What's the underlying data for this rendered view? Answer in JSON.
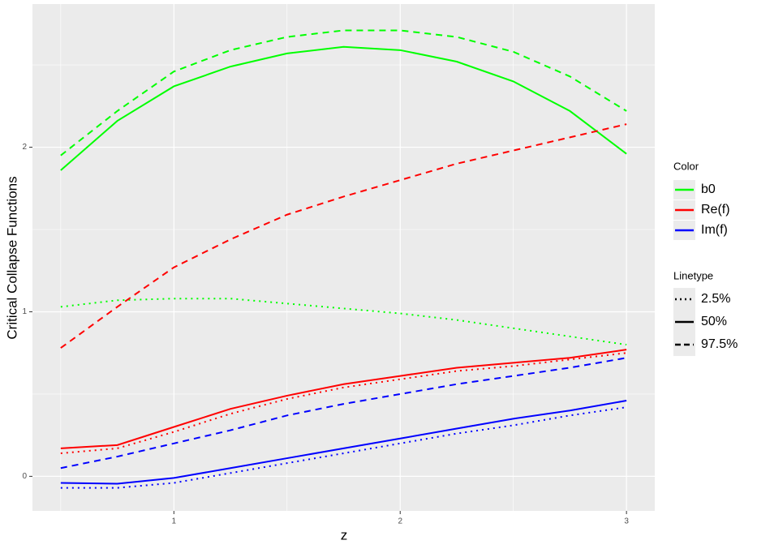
{
  "chart_data": {
    "type": "line",
    "x_label": "z",
    "y_label": "Critical Collapse Functions",
    "x": [
      0.5,
      0.75,
      1.0,
      1.25,
      1.5,
      1.75,
      2.0,
      2.25,
      2.5,
      2.75,
      3.0
    ],
    "series": [
      {
        "name": "b0",
        "color": "#00ff00",
        "linetype": "solid",
        "values": [
          1.86,
          2.16,
          2.37,
          2.49,
          2.57,
          2.61,
          2.59,
          2.52,
          2.4,
          2.22,
          1.96
        ]
      },
      {
        "name": "b0",
        "color": "#00ff00",
        "linetype": "dashed",
        "values": [
          1.95,
          2.22,
          2.46,
          2.59,
          2.67,
          2.71,
          2.71,
          2.67,
          2.58,
          2.43,
          2.22
        ]
      },
      {
        "name": "b0",
        "color": "#00ff00",
        "linetype": "dotted",
        "values": [
          1.03,
          1.07,
          1.08,
          1.08,
          1.05,
          1.02,
          0.99,
          0.95,
          0.9,
          0.85,
          0.8
        ]
      },
      {
        "name": "Re(f)",
        "color": "#ff0000",
        "linetype": "dashed",
        "values": [
          0.78,
          1.03,
          1.27,
          1.44,
          1.59,
          1.7,
          1.8,
          1.9,
          1.98,
          2.06,
          2.14
        ]
      },
      {
        "name": "Re(f)",
        "color": "#ff0000",
        "linetype": "solid",
        "values": [
          0.17,
          0.19,
          0.3,
          0.41,
          0.49,
          0.56,
          0.61,
          0.66,
          0.69,
          0.72,
          0.77
        ]
      },
      {
        "name": "Re(f)",
        "color": "#ff0000",
        "linetype": "dotted",
        "values": [
          0.14,
          0.17,
          0.27,
          0.38,
          0.47,
          0.54,
          0.59,
          0.64,
          0.67,
          0.71,
          0.75
        ]
      },
      {
        "name": "Im(f)",
        "color": "#0000ff",
        "linetype": "dashed",
        "values": [
          0.05,
          0.12,
          0.2,
          0.28,
          0.37,
          0.44,
          0.5,
          0.56,
          0.61,
          0.66,
          0.72
        ]
      },
      {
        "name": "Im(f)",
        "color": "#0000ff",
        "linetype": "solid",
        "values": [
          -0.04,
          -0.045,
          -0.01,
          0.05,
          0.11,
          0.17,
          0.23,
          0.29,
          0.35,
          0.4,
          0.46
        ]
      },
      {
        "name": "Im(f)",
        "color": "#0000ff",
        "linetype": "dotted",
        "values": [
          -0.07,
          -0.07,
          -0.04,
          0.02,
          0.08,
          0.14,
          0.2,
          0.26,
          0.31,
          0.37,
          0.42
        ]
      }
    ],
    "xlim": [
      0.375,
      3.125
    ],
    "xticks": [
      1,
      2,
      3
    ],
    "x_minor_ticks": [
      0.5,
      1.5,
      2.5
    ],
    "ylim": [
      -0.21,
      2.87
    ],
    "yticks": [
      0,
      1,
      2
    ],
    "y_minor_ticks": [
      0.5,
      1.5,
      2.5
    ],
    "grid": true,
    "color_legend": {
      "title": "Color",
      "entries": [
        {
          "name": "b0",
          "color": "#00ff00"
        },
        {
          "name": "Re(f)",
          "color": "#ff0000"
        },
        {
          "name": "Im(f)",
          "color": "#0000ff"
        }
      ]
    },
    "linetype_legend": {
      "title": "Linetype",
      "entries": [
        {
          "name": "2.5%",
          "linetype": "dotted"
        },
        {
          "name": "50%",
          "linetype": "solid"
        },
        {
          "name": "97.5%",
          "linetype": "dashed"
        }
      ]
    }
  }
}
